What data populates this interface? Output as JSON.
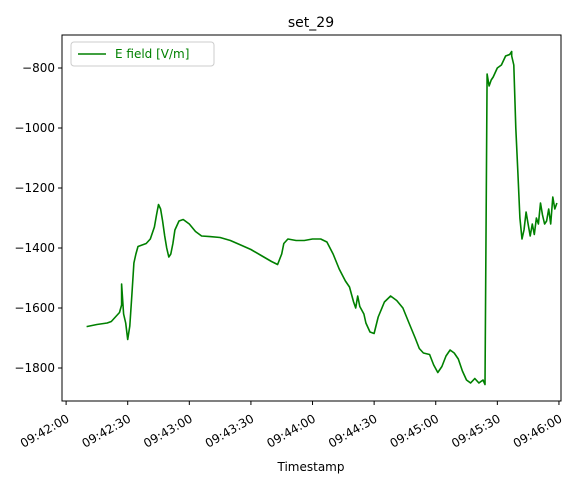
{
  "chart_data": {
    "type": "line",
    "title": "set_29",
    "xlabel": "Timestamp",
    "ylabel": "",
    "xlim": [
      "09:41:58",
      "09:46:01"
    ],
    "ylim": [
      -1910,
      -690
    ],
    "x_ticks": [
      "09:42:00",
      "09:42:30",
      "09:43:00",
      "09:43:30",
      "09:44:00",
      "09:44:30",
      "09:45:00",
      "09:45:30",
      "09:46:00"
    ],
    "y_ticks": [
      -800,
      -1000,
      -1200,
      -1400,
      -1600,
      -1800
    ],
    "y_tick_labels": [
      "−800",
      "−1000",
      "−1200",
      "−1400",
      "−1600",
      "−1800"
    ],
    "grid": false,
    "legend_position": "top-left",
    "series": [
      {
        "name": "E field [V/m]",
        "color": "#008000",
        "points": [
          [
            "09:42:10",
            -1662
          ],
          [
            "09:42:15",
            -1655
          ],
          [
            "09:42:20",
            -1650
          ],
          [
            "09:42:22",
            -1645
          ],
          [
            "09:42:24",
            -1630
          ],
          [
            "09:42:26",
            -1615
          ],
          [
            "09:42:27",
            -1590
          ],
          [
            "09:42:27",
            -1520
          ],
          [
            "09:42:28",
            -1620
          ],
          [
            "09:42:29",
            -1650
          ],
          [
            "09:42:30",
            -1705
          ],
          [
            "09:42:31",
            -1660
          ],
          [
            "09:42:32",
            -1560
          ],
          [
            "09:42:33",
            -1450
          ],
          [
            "09:42:34",
            -1420
          ],
          [
            "09:42:35",
            -1395
          ],
          [
            "09:42:37",
            -1390
          ],
          [
            "09:42:39",
            -1385
          ],
          [
            "09:42:41",
            -1370
          ],
          [
            "09:42:43",
            -1330
          ],
          [
            "09:42:44",
            -1290
          ],
          [
            "09:42:45",
            -1255
          ],
          [
            "09:42:46",
            -1270
          ],
          [
            "09:42:47",
            -1310
          ],
          [
            "09:42:48",
            -1360
          ],
          [
            "09:42:49",
            -1400
          ],
          [
            "09:42:50",
            -1430
          ],
          [
            "09:42:51",
            -1420
          ],
          [
            "09:42:52",
            -1385
          ],
          [
            "09:42:53",
            -1340
          ],
          [
            "09:42:55",
            -1310
          ],
          [
            "09:42:57",
            -1305
          ],
          [
            "09:43:00",
            -1320
          ],
          [
            "09:43:03",
            -1345
          ],
          [
            "09:43:06",
            -1360
          ],
          [
            "09:43:10",
            -1362
          ],
          [
            "09:43:15",
            -1365
          ],
          [
            "09:43:20",
            -1375
          ],
          [
            "09:43:25",
            -1390
          ],
          [
            "09:43:30",
            -1405
          ],
          [
            "09:43:35",
            -1425
          ],
          [
            "09:43:40",
            -1445
          ],
          [
            "09:43:43",
            -1455
          ],
          [
            "09:43:45",
            -1420
          ],
          [
            "09:43:46",
            -1385
          ],
          [
            "09:43:48",
            -1370
          ],
          [
            "09:43:52",
            -1375
          ],
          [
            "09:43:56",
            -1375
          ],
          [
            "09:44:00",
            -1370
          ],
          [
            "09:44:04",
            -1370
          ],
          [
            "09:44:07",
            -1380
          ],
          [
            "09:44:10",
            -1420
          ],
          [
            "09:44:13",
            -1470
          ],
          [
            "09:44:16",
            -1510
          ],
          [
            "09:44:18",
            -1530
          ],
          [
            "09:44:20",
            -1580
          ],
          [
            "09:44:21",
            -1600
          ],
          [
            "09:44:22",
            -1560
          ],
          [
            "09:44:23",
            -1595
          ],
          [
            "09:44:25",
            -1620
          ],
          [
            "09:44:26",
            -1650
          ],
          [
            "09:44:28",
            -1680
          ],
          [
            "09:44:30",
            -1685
          ],
          [
            "09:44:32",
            -1630
          ],
          [
            "09:44:35",
            -1580
          ],
          [
            "09:44:38",
            -1560
          ],
          [
            "09:44:41",
            -1575
          ],
          [
            "09:44:44",
            -1600
          ],
          [
            "09:44:47",
            -1650
          ],
          [
            "09:44:50",
            -1700
          ],
          [
            "09:44:52",
            -1735
          ],
          [
            "09:44:54",
            -1750
          ],
          [
            "09:44:57",
            -1755
          ],
          [
            "09:44:59",
            -1790
          ],
          [
            "09:45:01",
            -1815
          ],
          [
            "09:45:03",
            -1795
          ],
          [
            "09:45:05",
            -1760
          ],
          [
            "09:45:07",
            -1740
          ],
          [
            "09:45:09",
            -1750
          ],
          [
            "09:45:11",
            -1770
          ],
          [
            "09:45:13",
            -1810
          ],
          [
            "09:45:15",
            -1840
          ],
          [
            "09:45:17",
            -1850
          ],
          [
            "09:45:19",
            -1835
          ],
          [
            "09:45:21",
            -1850
          ],
          [
            "09:45:23",
            -1840
          ],
          [
            "09:45:24",
            -1855
          ],
          [
            "09:45:25",
            -820
          ],
          [
            "09:45:26",
            -860
          ],
          [
            "09:45:27",
            -840
          ],
          [
            "09:45:28",
            -830
          ],
          [
            "09:45:30",
            -800
          ],
          [
            "09:45:32",
            -790
          ],
          [
            "09:45:34",
            -760
          ],
          [
            "09:45:36",
            -755
          ],
          [
            "09:45:37",
            -745
          ],
          [
            "09:45:37",
            -760
          ],
          [
            "09:45:38",
            -790
          ],
          [
            "09:45:39",
            -1000
          ],
          [
            "09:45:40",
            -1150
          ],
          [
            "09:45:41",
            -1300
          ],
          [
            "09:45:42",
            -1370
          ],
          [
            "09:45:43",
            -1340
          ],
          [
            "09:45:44",
            -1280
          ],
          [
            "09:45:45",
            -1320
          ],
          [
            "09:45:46",
            -1360
          ],
          [
            "09:45:47",
            -1320
          ],
          [
            "09:45:48",
            -1355
          ],
          [
            "09:45:49",
            -1300
          ],
          [
            "09:45:50",
            -1320
          ],
          [
            "09:45:51",
            -1250
          ],
          [
            "09:45:52",
            -1290
          ],
          [
            "09:45:53",
            -1320
          ],
          [
            "09:45:54",
            -1310
          ],
          [
            "09:45:55",
            -1270
          ],
          [
            "09:45:56",
            -1320
          ],
          [
            "09:45:57",
            -1230
          ],
          [
            "09:45:58",
            -1270
          ],
          [
            "09:45:59",
            -1250
          ]
        ]
      }
    ]
  }
}
